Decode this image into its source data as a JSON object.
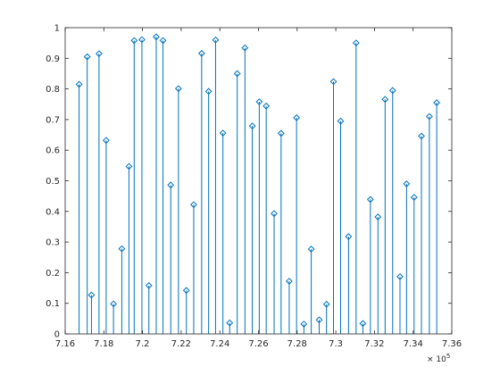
{
  "chart_data": {
    "type": "stem",
    "title": "",
    "xlabel": "",
    "ylabel": "",
    "x_exponent_label": "× 10",
    "x_exponent_power": "5",
    "xlim": [
      7.16,
      7.36
    ],
    "ylim": [
      0,
      1
    ],
    "x_ticks": [
      7.16,
      7.18,
      7.2,
      7.22,
      7.24,
      7.26,
      7.28,
      7.3,
      7.32,
      7.34,
      7.36
    ],
    "x_tick_labels": [
      "7.16",
      "7.18",
      "7.2",
      "7.22",
      "7.24",
      "7.26",
      "7.28",
      "7.3",
      "7.32",
      "7.34",
      "7.36"
    ],
    "y_ticks": [
      0,
      0.1,
      0.2,
      0.3,
      0.4,
      0.5,
      0.6,
      0.7,
      0.8,
      0.9,
      1
    ],
    "y_tick_labels": [
      "0",
      "0.1",
      "0.2",
      "0.3",
      "0.4",
      "0.5",
      "0.6",
      "0.7",
      "0.8",
      "0.9",
      "1"
    ],
    "grid": false,
    "marker": "diamond",
    "color": "#0072bd",
    "series": [
      {
        "x": [
          7.1672,
          7.1714,
          7.1736,
          7.1775,
          7.1812,
          7.185,
          7.1893,
          7.193,
          7.1957,
          7.1997,
          7.2033,
          7.2071,
          7.2106,
          7.2146,
          7.2186,
          7.2227,
          7.2265,
          7.2306,
          7.2342,
          7.2378,
          7.2416,
          7.2451,
          7.249,
          7.253,
          7.2568,
          7.2604,
          7.264,
          7.2681,
          7.2717,
          7.2759,
          7.2797,
          7.2835,
          7.2873,
          7.2914,
          7.2952,
          7.2988,
          7.3025,
          7.3066,
          7.3105,
          7.314,
          7.3179,
          7.3218,
          7.3255,
          7.3294,
          7.3332,
          7.3366,
          7.3405,
          7.3443,
          7.3484,
          7.3522
        ],
        "y": [
          0.815,
          0.905,
          0.127,
          0.915,
          0.632,
          0.098,
          0.278,
          0.547,
          0.958,
          0.961,
          0.158,
          0.97,
          0.958,
          0.486,
          0.801,
          0.142,
          0.422,
          0.916,
          0.792,
          0.96,
          0.656,
          0.036,
          0.85,
          0.934,
          0.679,
          0.758,
          0.744,
          0.393,
          0.655,
          0.172,
          0.706,
          0.032,
          0.277,
          0.046,
          0.097,
          0.824,
          0.695,
          0.318,
          0.95,
          0.034,
          0.439,
          0.382,
          0.766,
          0.795,
          0.187,
          0.49,
          0.446,
          0.646,
          0.71,
          0.755
        ]
      }
    ]
  }
}
